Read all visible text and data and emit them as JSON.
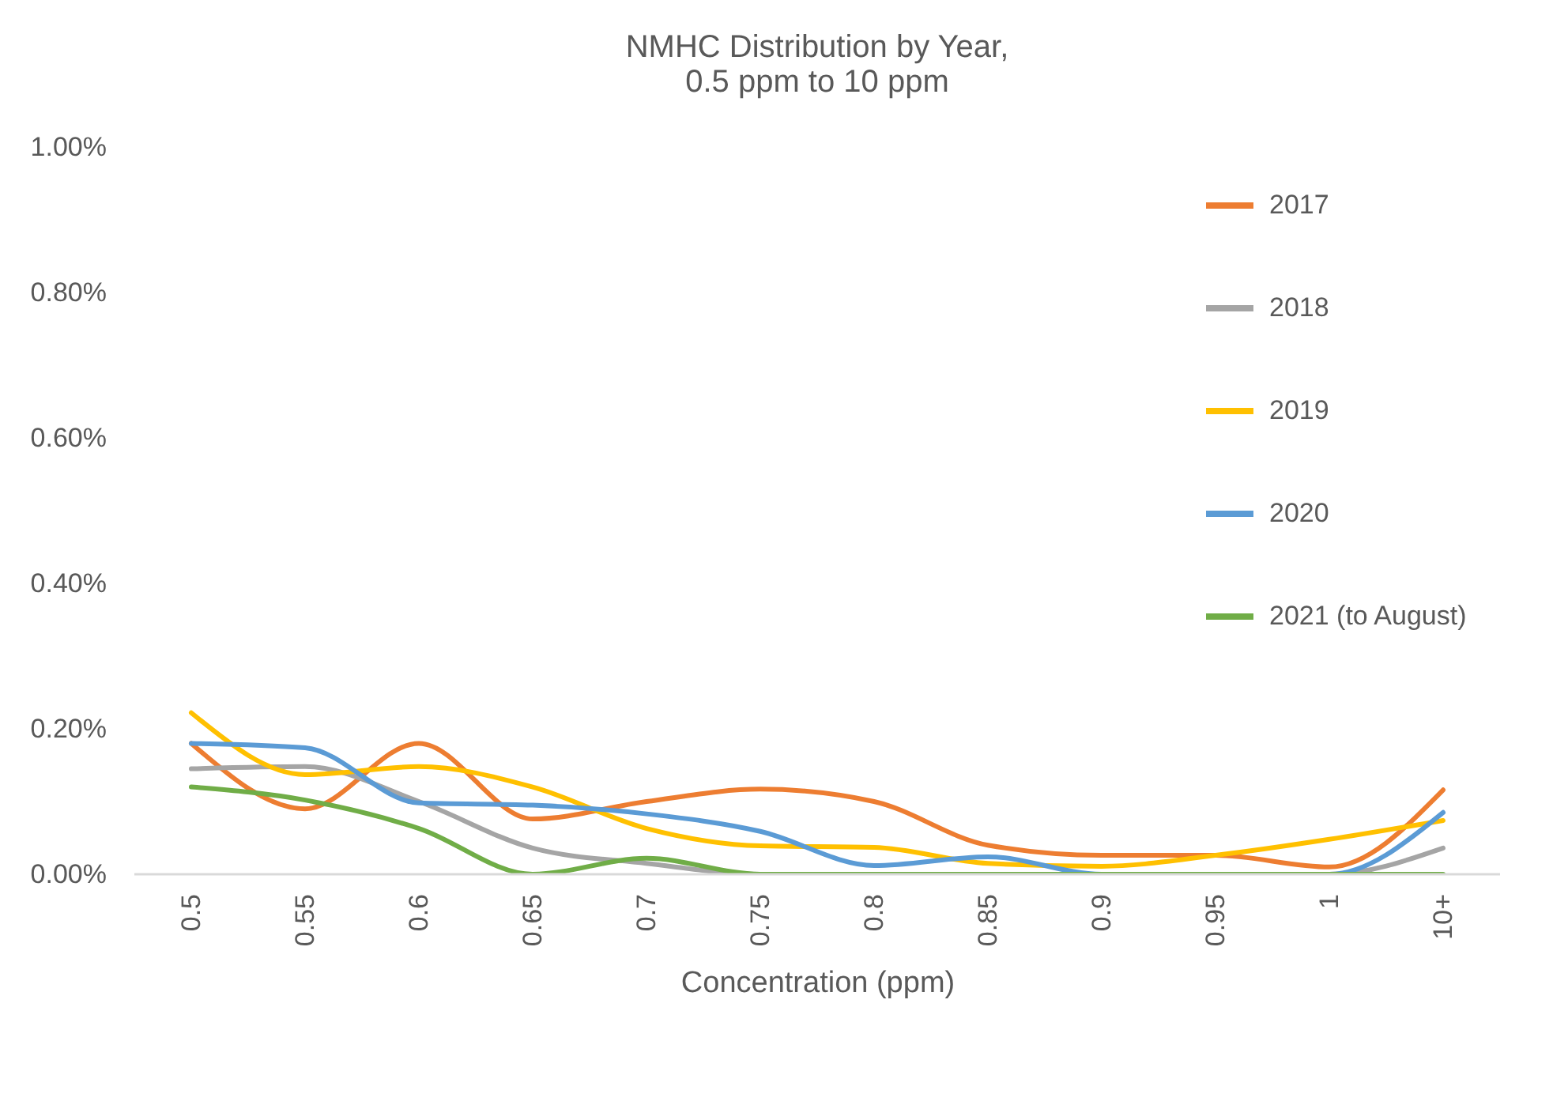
{
  "chart_data": {
    "type": "line",
    "title": "NMHC Distribution by Year,\n0.5 ppm to 10 ppm",
    "xlabel": "Concentration (ppm)",
    "categories": [
      "0.5",
      "0.55",
      "0.6",
      "0.65",
      "0.7",
      "0.75",
      "0.8",
      "0.85",
      "0.9",
      "0.95",
      "1",
      "10+"
    ],
    "series": [
      {
        "name": "2017",
        "color": "#ed7d31",
        "values": [
          0.18,
          0.09,
          0.18,
          0.076,
          0.1,
          0.117,
          0.1,
          0.04,
          0.026,
          0.026,
          0.01,
          0.116
        ]
      },
      {
        "name": "2018",
        "color": "#a5a5a5",
        "values": [
          0.145,
          0.148,
          0.1,
          0.036,
          0.015,
          0,
          0,
          0,
          0,
          0,
          0,
          0.036
        ]
      },
      {
        "name": "2019",
        "color": "#ffc000",
        "values": [
          0.222,
          0.137,
          0.148,
          0.12,
          0.063,
          0.039,
          0.037,
          0.015,
          0.011,
          0.026,
          0.048,
          0.074
        ]
      },
      {
        "name": "2020",
        "color": "#5b9bd5",
        "values": [
          0.18,
          0.174,
          0.098,
          0.095,
          0.083,
          0.059,
          0.012,
          0.024,
          0,
          0,
          0,
          0.085
        ]
      },
      {
        "name": "2021 (to August)",
        "color": "#70ad47",
        "values": [
          0.12,
          0.102,
          0.063,
          0,
          0.022,
          0,
          0,
          0,
          0,
          0,
          0,
          0
        ]
      }
    ],
    "ylim": [
      0,
      1
    ],
    "yticks": [
      {
        "value": 0,
        "label": "0.00%"
      },
      {
        "value": 0.2,
        "label": "0.20%"
      },
      {
        "value": 0.4,
        "label": "0.40%"
      },
      {
        "value": 0.6,
        "label": "0.60%"
      },
      {
        "value": 0.8,
        "label": "0.80%"
      },
      {
        "value": 1,
        "label": "1.00%"
      }
    ],
    "grid": false,
    "legend": "right",
    "marker": "none",
    "line_style": "solid"
  }
}
